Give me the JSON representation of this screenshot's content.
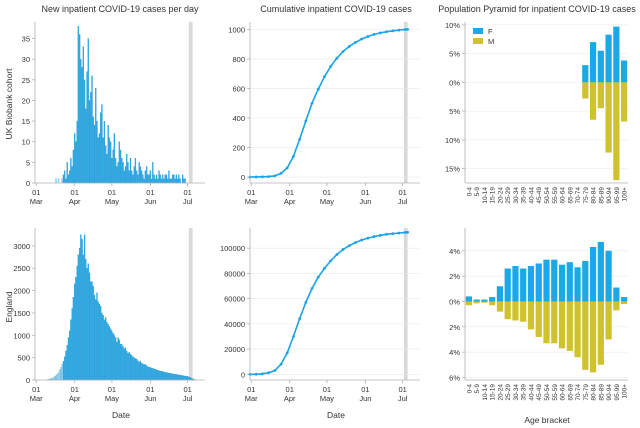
{
  "colors": {
    "bar": "#29a9e6",
    "bar_light": "#bfe3f7",
    "line": "#1aa3e8",
    "female": "#1aa9e8",
    "male": "#cfc22c",
    "shade": "#d9d9d9",
    "axis": "#b0b0b0",
    "grid": "#e8e8e8"
  },
  "row_labels": [
    "UK Biobank cohort",
    "England"
  ],
  "x_axis_label": "Date",
  "pyramid_x_label": "Age bracket",
  "date_ticks": [
    "01\nMar",
    "01\nApr",
    "01\nMay",
    "01\nJun",
    "01\nJul"
  ],
  "chart_data": [
    {
      "id": "daily-ukb",
      "type": "bar",
      "title": "New inpatient COVID-19 cases per day",
      "ylabel": "UK Biobank cohort",
      "xlabel": "",
      "xlim": [
        0,
        137
      ],
      "ylim": [
        0,
        39
      ],
      "yticks": [
        0,
        5,
        10,
        15,
        20,
        25,
        30,
        35
      ],
      "xticks": [
        1,
        32,
        62,
        93,
        123
      ],
      "shade": [
        124,
        127
      ],
      "light_before": 23,
      "values": [
        0,
        0,
        0,
        0,
        0,
        0,
        0,
        0,
        0,
        0,
        0,
        0,
        0,
        0,
        0,
        0,
        0,
        1,
        0,
        1,
        0,
        0,
        1,
        2,
        3,
        1,
        5,
        2,
        3,
        6,
        4,
        8,
        12,
        10,
        15,
        38,
        36,
        30,
        28,
        33,
        25,
        18,
        27,
        35,
        20,
        22,
        26,
        16,
        14,
        23,
        15,
        11,
        12,
        17,
        19,
        11,
        15,
        9,
        7,
        14,
        11,
        10,
        6,
        8,
        12,
        6,
        4,
        5,
        10,
        8,
        6,
        5,
        3,
        4,
        7,
        5,
        3,
        6,
        3,
        2,
        4,
        6,
        3,
        2,
        5,
        4,
        3,
        2,
        1,
        3,
        4,
        2,
        2,
        3,
        1,
        5,
        2,
        1,
        2,
        1,
        3,
        2,
        1,
        2,
        1,
        2,
        2,
        1,
        3,
        1,
        1,
        2,
        2,
        1,
        2,
        1,
        2,
        1,
        0,
        2,
        1,
        1,
        0,
        0,
        0,
        0,
        0,
        0,
        0,
        0,
        0,
        0,
        0,
        0,
        0,
        0,
        0
      ]
    },
    {
      "id": "cum-ukb",
      "type": "line",
      "title": "Cumulative inpatient COVID-19 cases",
      "xlabel": "",
      "ylabel": "",
      "xlim": [
        0,
        137
      ],
      "ylim": [
        -40,
        1050
      ],
      "yticks": [
        0,
        200,
        400,
        600,
        800,
        1000
      ],
      "xticks": [
        1,
        32,
        62,
        93,
        123
      ],
      "shade": [
        124,
        127
      ],
      "x": [
        0,
        5,
        10,
        15,
        20,
        25,
        30,
        35,
        40,
        45,
        50,
        55,
        60,
        65,
        70,
        75,
        80,
        85,
        90,
        95,
        100,
        105,
        110,
        115,
        120,
        125,
        127
      ],
      "values": [
        0,
        1,
        2,
        3,
        8,
        25,
        62,
        140,
        255,
        380,
        500,
        595,
        680,
        750,
        805,
        850,
        885,
        912,
        935,
        952,
        966,
        976,
        984,
        990,
        995,
        999,
        1000
      ]
    },
    {
      "id": "pyr-ukb",
      "type": "bar",
      "subtype": "population-pyramid",
      "title": "Population Pyramid for inpatient COVID-19 cases",
      "xlabel": "",
      "ylabel": "",
      "ylim": [
        -17.5,
        10.5
      ],
      "ytick_values": [
        -15,
        -10,
        -5,
        0,
        5,
        10
      ],
      "ytick_labels": [
        "15%",
        "10%",
        "5%",
        "0%",
        "5%",
        "10%"
      ],
      "legend": [
        {
          "name": "F",
          "color": "#1aa9e8"
        },
        {
          "name": "M",
          "color": "#cfc22c"
        }
      ],
      "legend_loc": "top-left",
      "categories": [
        "0-4",
        "5-9",
        "10-14",
        "15-19",
        "20-24",
        "25-29",
        "30-34",
        "35-39",
        "40-44",
        "45-49",
        "50-54",
        "55-59",
        "60-64",
        "65-69",
        "70-74",
        "75-79",
        "80-84",
        "85-89",
        "90-94",
        "95-99",
        "100+"
      ],
      "series": [
        {
          "name": "F",
          "values": [
            0,
            0,
            0,
            0,
            0,
            0,
            0,
            0,
            0,
            0,
            0,
            0,
            0,
            0,
            0,
            3,
            7,
            5.5,
            8.3,
            9.7,
            3.8
          ]
        },
        {
          "name": "M",
          "values": [
            0,
            0,
            0,
            0,
            0,
            0,
            0,
            0,
            0,
            0,
            0,
            0,
            0,
            0,
            0,
            -2.8,
            -6.5,
            -4.5,
            -12.2,
            -17,
            -6.8
          ]
        }
      ]
    },
    {
      "id": "daily-eng",
      "type": "bar",
      "title": "",
      "ylabel": "England",
      "xlabel": "Date",
      "xlim": [
        0,
        137
      ],
      "ylim": [
        0,
        3400
      ],
      "yticks": [
        0,
        500,
        1000,
        1500,
        2000,
        2500,
        3000
      ],
      "xticks": [
        1,
        32,
        62,
        93,
        123
      ],
      "shade": [
        124,
        127
      ],
      "light_before": 23,
      "values": [
        0,
        0,
        0,
        0,
        0,
        0,
        0,
        0,
        0,
        0,
        10,
        10,
        20,
        30,
        40,
        50,
        80,
        100,
        130,
        170,
        230,
        280,
        350,
        420,
        520,
        650,
        780,
        950,
        1100,
        1350,
        1600,
        1850,
        2150,
        2300,
        2550,
        2800,
        2950,
        3250,
        3150,
        2800,
        3250,
        2700,
        2500,
        2600,
        2400,
        2200,
        2200,
        2100,
        1900,
        1800,
        1950,
        1750,
        1700,
        1650,
        1500,
        1450,
        1350,
        1400,
        1300,
        1250,
        1200,
        1150,
        1100,
        1050,
        1000,
        950,
        850,
        950,
        900,
        800,
        800,
        750,
        700,
        720,
        650,
        600,
        620,
        580,
        550,
        520,
        500,
        480,
        470,
        430,
        400,
        420,
        380,
        360,
        340,
        350,
        320,
        300,
        290,
        280,
        270,
        260,
        250,
        240,
        230,
        220,
        210,
        200,
        195,
        190,
        180,
        175,
        170,
        160,
        155,
        150,
        145,
        140,
        135,
        130,
        125,
        120,
        115,
        110,
        105,
        100,
        95,
        90,
        85,
        80,
        70,
        60,
        40,
        30,
        20,
        10,
        0,
        0,
        0,
        0,
        0,
        0,
        0,
        0,
        0,
        0
      ]
    },
    {
      "id": "cum-eng",
      "type": "line",
      "title": "",
      "xlabel": "Date",
      "ylabel": "",
      "xlim": [
        0,
        137
      ],
      "ylim": [
        -4500,
        116000
      ],
      "yticks": [
        0,
        20000,
        40000,
        60000,
        80000,
        100000
      ],
      "xticks": [
        1,
        32,
        62,
        93,
        123
      ],
      "shade": [
        124,
        127
      ],
      "x": [
        0,
        5,
        10,
        15,
        20,
        25,
        30,
        35,
        40,
        45,
        50,
        55,
        60,
        65,
        70,
        75,
        80,
        85,
        90,
        95,
        100,
        105,
        110,
        115,
        120,
        125,
        127
      ],
      "values": [
        0,
        50,
        400,
        1200,
        3000,
        8000,
        17000,
        30000,
        44000,
        57000,
        68000,
        77000,
        84000,
        90000,
        95000,
        99000,
        102000,
        104500,
        106500,
        108000,
        109200,
        110200,
        111000,
        111500,
        112000,
        112500,
        112600
      ]
    },
    {
      "id": "pyr-eng",
      "type": "bar",
      "subtype": "population-pyramid",
      "title": "",
      "xlabel": "Age bracket",
      "ylabel": "",
      "ylim": [
        -6.2,
        5.8
      ],
      "ytick_values": [
        -6,
        -4,
        -2,
        0,
        2,
        4
      ],
      "ytick_labels": [
        "6%",
        "4%",
        "2%",
        "0%",
        "2%",
        "4%"
      ],
      "categories": [
        "0-4",
        "5-9",
        "10-14",
        "15-19",
        "20-24",
        "25-29",
        "30-34",
        "35-39",
        "40-44",
        "45-49",
        "50-54",
        "55-59",
        "60-64",
        "65-69",
        "70-74",
        "75-79",
        "80-84",
        "85-89",
        "90-94",
        "95-99",
        "100+"
      ],
      "series": [
        {
          "name": "F",
          "values": [
            0.4,
            0.15,
            0.15,
            0.35,
            1.2,
            2.6,
            2.8,
            2.6,
            2.8,
            3.0,
            3.3,
            3.3,
            2.9,
            3.1,
            2.7,
            3.2,
            4.3,
            4.7,
            4.0,
            1.1,
            0.35
          ]
        },
        {
          "name": "M",
          "values": [
            -0.3,
            -0.15,
            -0.1,
            -0.3,
            -0.8,
            -1.4,
            -1.5,
            -1.6,
            -2.2,
            -2.8,
            -3.3,
            -3.3,
            -3.7,
            -3.9,
            -4.4,
            -5.4,
            -5.6,
            -5.0,
            -3.0,
            -0.7,
            -0.2
          ]
        }
      ]
    }
  ]
}
